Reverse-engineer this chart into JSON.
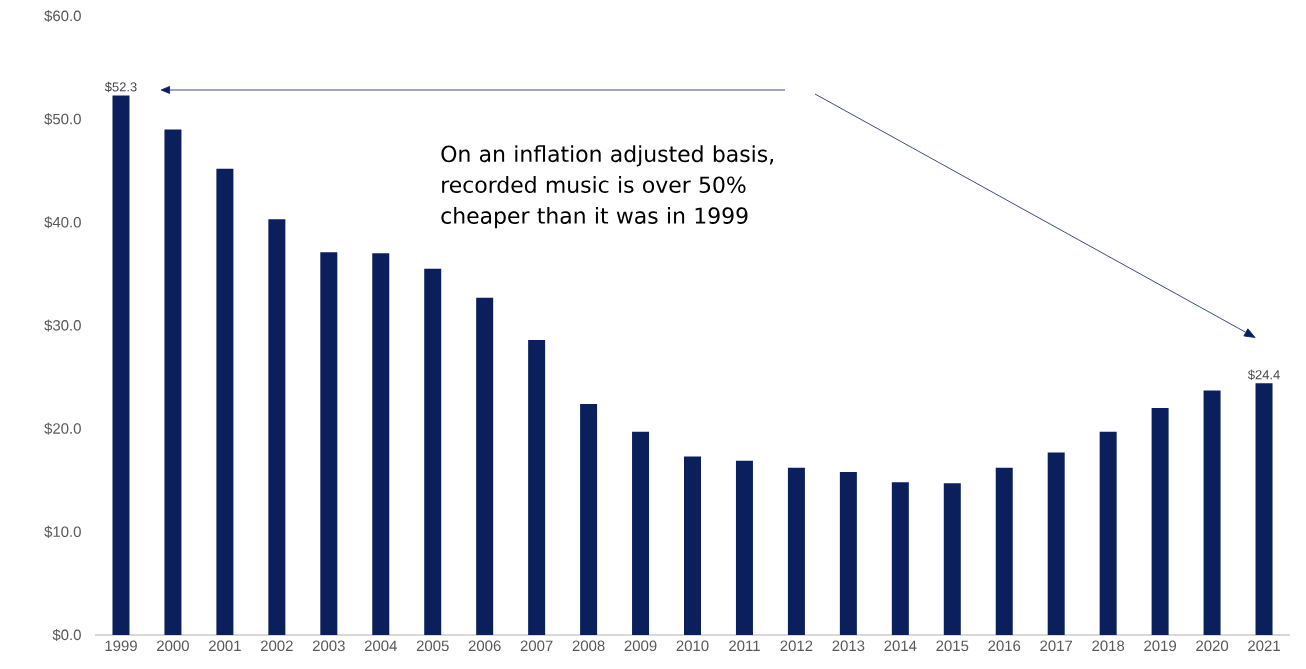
{
  "chart_data": {
    "type": "bar",
    "categories": [
      "1999",
      "2000",
      "2001",
      "2002",
      "2003",
      "2004",
      "2005",
      "2006",
      "2007",
      "2008",
      "2009",
      "2010",
      "2011",
      "2012",
      "2013",
      "2014",
      "2015",
      "2016",
      "2017",
      "2018",
      "2019",
      "2020",
      "2021"
    ],
    "values": [
      52.3,
      49.0,
      45.2,
      40.3,
      37.1,
      37.0,
      35.5,
      32.7,
      28.6,
      22.4,
      19.7,
      17.3,
      16.9,
      16.2,
      15.8,
      14.8,
      14.7,
      16.2,
      17.7,
      19.7,
      22.0,
      23.7,
      24.4
    ],
    "value_labels": [
      "$52.3",
      null,
      null,
      null,
      null,
      null,
      null,
      null,
      null,
      null,
      null,
      null,
      null,
      null,
      null,
      null,
      null,
      null,
      null,
      null,
      null,
      null,
      "$24.4"
    ],
    "color": "#0b1f5c",
    "ylim": [
      0,
      60
    ],
    "yticks": [
      {
        "value": 0,
        "label": "$0.0"
      },
      {
        "value": 10,
        "label": "$10.0"
      },
      {
        "value": 20,
        "label": "$20.0"
      },
      {
        "value": 30,
        "label": "$30.0"
      },
      {
        "value": 40,
        "label": "$40.0"
      },
      {
        "value": 50,
        "label": "$50.0"
      },
      {
        "value": 60,
        "label": "$60.0"
      }
    ],
    "annotations": [
      "On an inflation adjusted basis, recorded music is over 50% cheaper than it was in 1999"
    ],
    "grid": false
  }
}
